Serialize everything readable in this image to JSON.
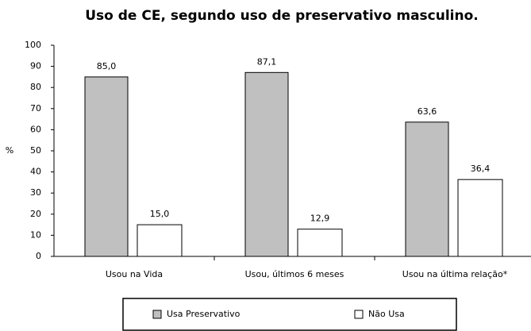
{
  "chart_data": {
    "type": "bar",
    "title": "Uso de CE, segundo uso de preservativo masculino.",
    "y_label": "%",
    "categories": [
      "Usou na Vida",
      "Usou, últimos 6 meses",
      "Usou na última relação*"
    ],
    "series": [
      {
        "name": "Usa Preservativo",
        "color": "#c0c0c0",
        "values": [
          85.0,
          87.1,
          63.6
        ],
        "value_labels": [
          "85,0",
          "87,1",
          "63,6"
        ]
      },
      {
        "name": "Não Usa",
        "color": "#ffffff",
        "values": [
          15.0,
          12.9,
          36.4
        ],
        "value_labels": [
          "15,0",
          "12,9",
          "36,4"
        ]
      }
    ],
    "ylim": [
      0,
      100
    ],
    "yticks": [
      0,
      10,
      20,
      30,
      40,
      50,
      60,
      70,
      80,
      90,
      100
    ],
    "grid": false,
    "legend": "bottom"
  }
}
